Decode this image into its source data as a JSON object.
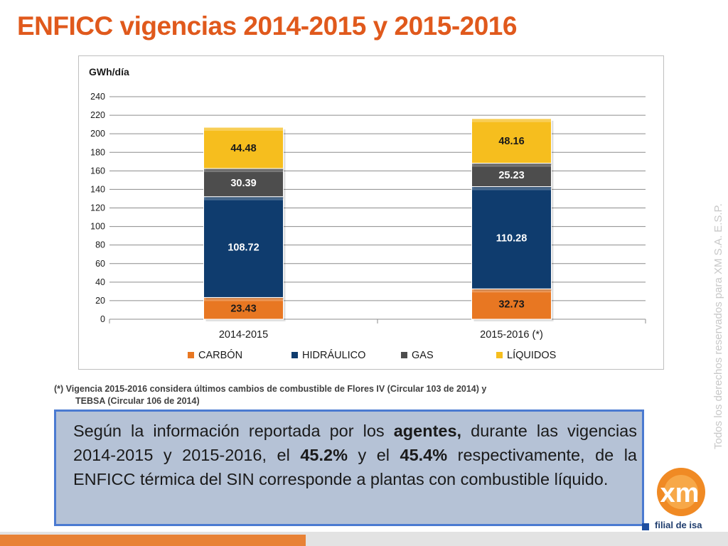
{
  "title": "ENFICC vigencias 2014-2015 y 2015-2016",
  "footnote": {
    "line1": "(*) Vigencia 2015-2016 considera últimos cambios de combustible de Flores IV (Circular 103 de 2014)  y",
    "line2": "TEBSA (Circular 106 de 2014)"
  },
  "info": {
    "part1": "Según la información reportada por los ",
    "bold1": "agentes,",
    "part2": " durante las vigencias 2014-2015 y 2015-2016, el ",
    "bold2": "45.2%",
    "part3": " y el ",
    "bold3": "45.4%",
    "part4": " respectivamente, de la ENFICC térmica del SIN corresponde a plantas con combustible líquido."
  },
  "side_note": "Todos los derechos reservados para XM S.A. E.S.P.",
  "logo": {
    "text": "xm",
    "subtitle": "filial de isa"
  },
  "colors": {
    "title": "#e0591c",
    "carbon": "#e87722",
    "hidraulico": "#0f3c6e",
    "gas": "#4d4d4d",
    "liquidos": "#f6be1e"
  },
  "chart_data": {
    "type": "bar",
    "stacked": true,
    "ylabel": "GWh/día",
    "ylim": [
      0,
      240
    ],
    "yticks": [
      0,
      20,
      40,
      60,
      80,
      100,
      120,
      140,
      160,
      180,
      200,
      220,
      240
    ],
    "categories": [
      "2014-2015",
      "2015-2016 (*)"
    ],
    "series": [
      {
        "name": "CARBÓN",
        "color": "#e87722",
        "values": [
          23.43,
          32.73
        ]
      },
      {
        "name": "HIDRÁULICO",
        "color": "#0f3c6e",
        "values": [
          108.72,
          110.28
        ]
      },
      {
        "name": "GAS",
        "color": "#4d4d4d",
        "values": [
          30.39,
          25.23
        ]
      },
      {
        "name": "LÍQUIDOS",
        "color": "#f6be1e",
        "values": [
          44.48,
          48.16
        ]
      }
    ],
    "legend_position": "bottom",
    "grid": true
  }
}
